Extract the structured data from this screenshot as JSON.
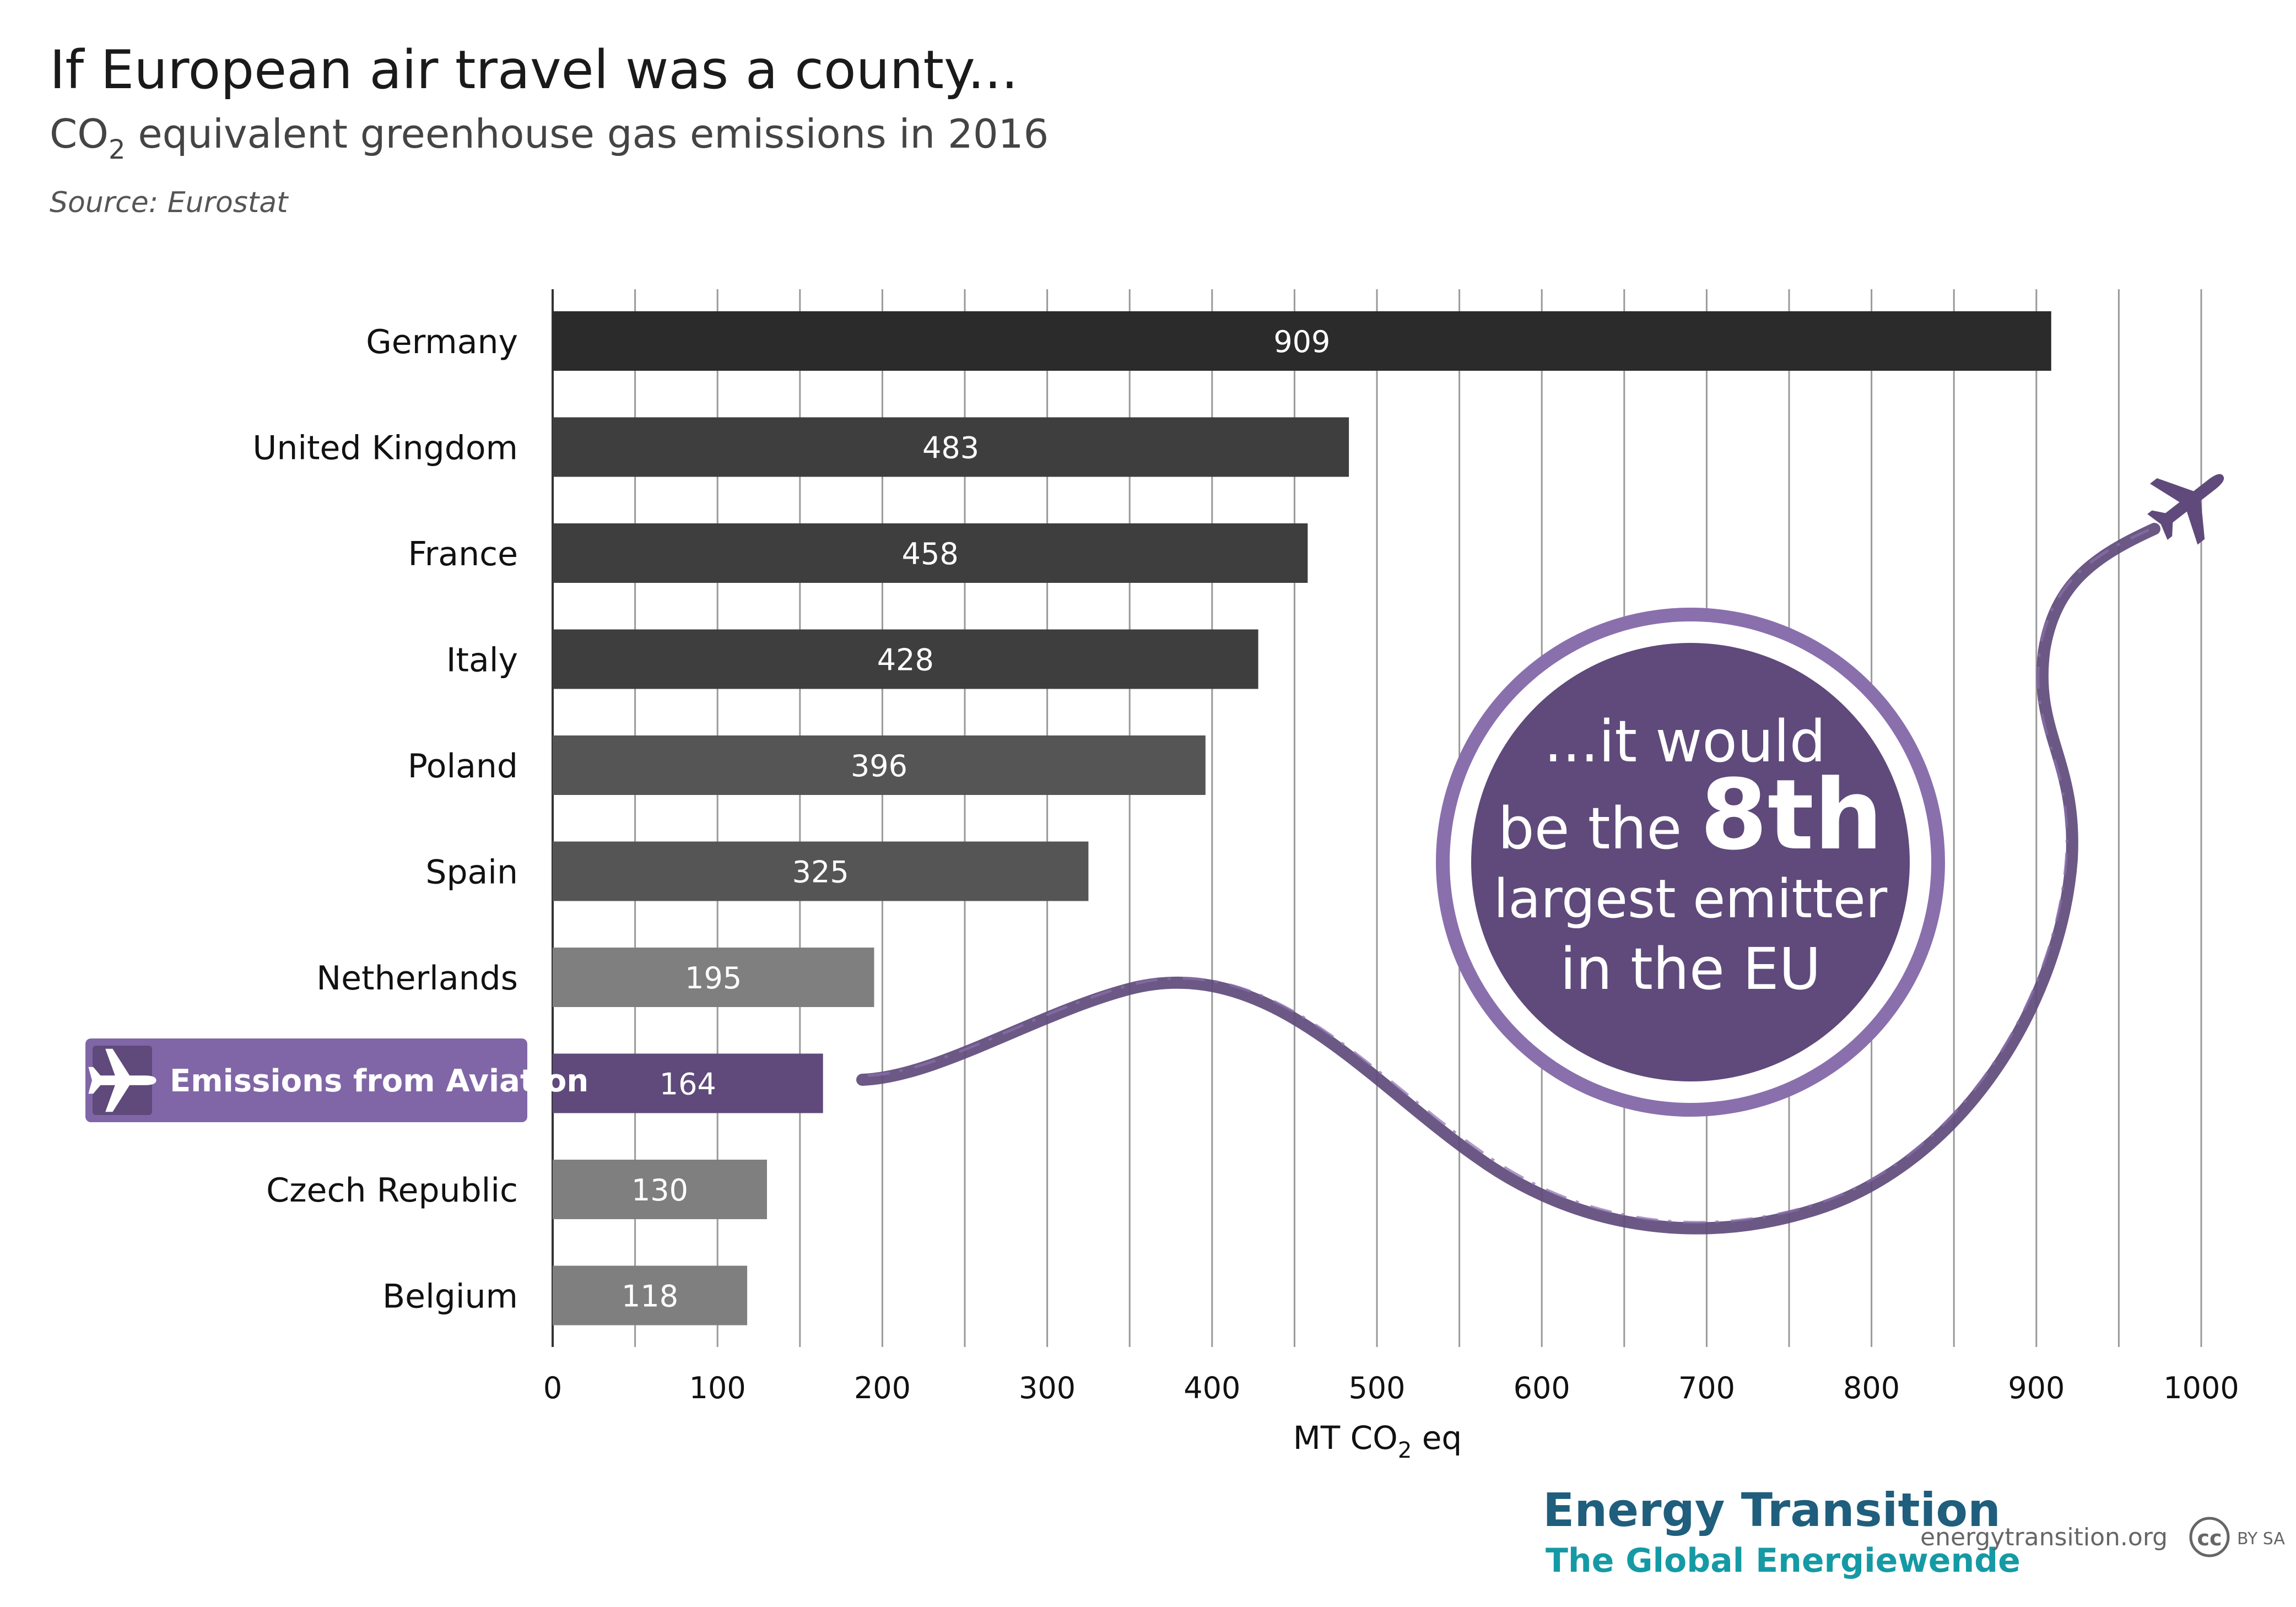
{
  "header": {
    "title": "If European air travel was a county...",
    "subtitle_main": "CO",
    "subtitle_sub": "2",
    "subtitle_rest": " equivalent greenhouse gas emissions in 2016",
    "source": "Source:  Eurostat"
  },
  "chart_data": {
    "type": "bar",
    "orientation": "horizontal",
    "categories": [
      "Germany",
      "United Kingdom",
      "France",
      "Italy",
      "Poland",
      "Spain",
      "Netherlands",
      "Emissions from Aviation",
      "Czech Republic",
      "Belgium"
    ],
    "values": [
      909,
      483,
      458,
      428,
      396,
      325,
      195,
      164,
      130,
      118
    ],
    "value_labels": [
      "909",
      "483",
      "458",
      "428",
      "396",
      "325",
      "195",
      "164",
      "130",
      "118"
    ],
    "bar_colors": [
      "#2b2b2b",
      "#3e3e3e",
      "#3e3e3e",
      "#3e3e3e",
      "#555555",
      "#555555",
      "#7f7f7f",
      "#5f4a7b",
      "#7f7f7f",
      "#7f7f7f"
    ],
    "highlight_index": 7,
    "xlim": [
      0,
      1000
    ],
    "xticks": [
      0,
      100,
      200,
      300,
      400,
      500,
      600,
      700,
      800,
      900,
      1000
    ],
    "xtick_labels": [
      "0",
      "100",
      "200",
      "300",
      "400",
      "500",
      "600",
      "700",
      "800",
      "900",
      "1000"
    ],
    "gridlines": true,
    "xlabel_main": "MT CO",
    "xlabel_sub": "2",
    "xlabel_rest": " eq"
  },
  "callout": {
    "line1": "...it would",
    "line2a": "be the ",
    "line2b": "8th",
    "line3": "largest emitter",
    "line4": "in the EU"
  },
  "colors": {
    "accent_purple": "#5f4a7b",
    "ring_purple": "#8a6fad",
    "highlight_box": "#8066a6"
  },
  "icons": {
    "airplane": "airplane-icon"
  },
  "footer": {
    "brand_line1": "Energy Transition",
    "brand_line2": "The Global Energiewende",
    "url": "energytransition.org",
    "license_cc": "cc",
    "license_text": "BY SA"
  }
}
